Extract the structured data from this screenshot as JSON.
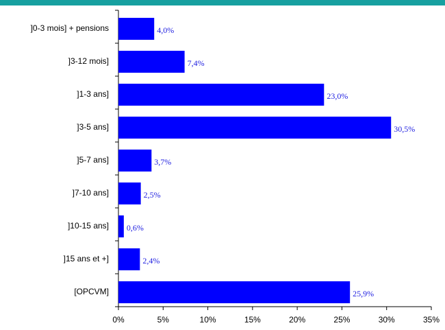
{
  "chart_data": {
    "type": "bar",
    "orientation": "horizontal",
    "categories": [
      "]0-3 mois] + pensions",
      "]3-12 mois]",
      "]1-3 ans]",
      "]3-5 ans]",
      "]5-7 ans]",
      "]7-10 ans]",
      "]10-15 ans]",
      "]15 ans et +]",
      "[OPCVM]"
    ],
    "values": [
      4.0,
      7.4,
      23.0,
      30.5,
      3.7,
      2.5,
      0.6,
      2.4,
      25.9
    ],
    "value_labels": [
      "4,0%",
      "7,4%",
      "23,0%",
      "30,5%",
      "3,7%",
      "2,5%",
      "0,6%",
      "2,4%",
      "25,9%"
    ],
    "color": "#0000ff",
    "xlim": [
      0,
      35
    ],
    "xticks": [
      {
        "value": 0,
        "label": "0%"
      },
      {
        "value": 5,
        "label": "5%"
      },
      {
        "value": 10,
        "label": "10%"
      },
      {
        "value": 15,
        "label": "15%"
      },
      {
        "value": 20,
        "label": "20%"
      },
      {
        "value": 25,
        "label": "25%"
      },
      {
        "value": 30,
        "label": "30%"
      },
      {
        "value": 35,
        "label": "35%"
      }
    ],
    "grid": false
  }
}
